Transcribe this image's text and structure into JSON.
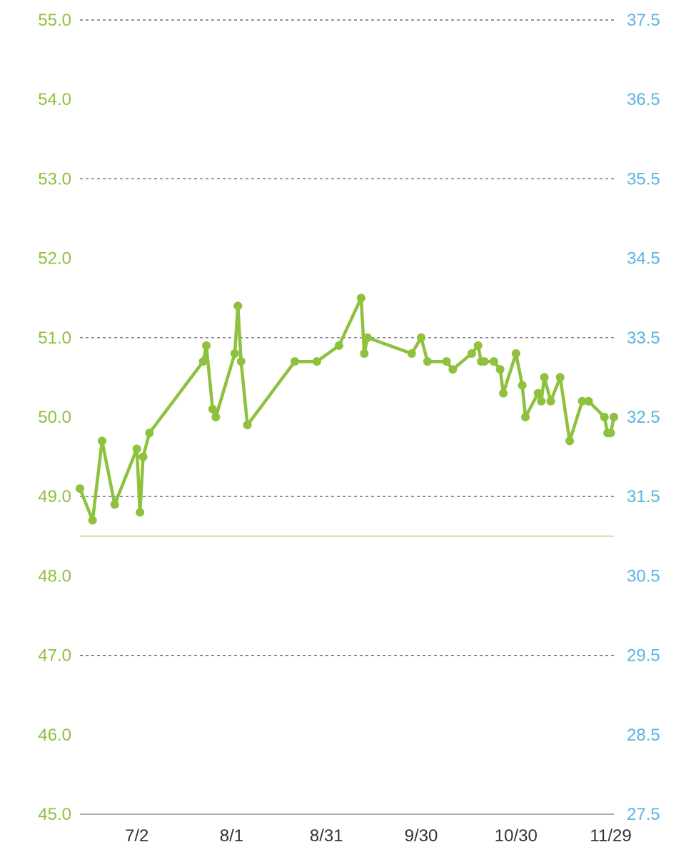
{
  "chart_data": {
    "type": "line",
    "x_axis_kind": "date",
    "x_tick_labels": [
      "7/2",
      "8/1",
      "8/31",
      "9/30",
      "10/30",
      "11/29"
    ],
    "y_left": {
      "ylim": [
        45.0,
        55.0
      ],
      "ticks": [
        "45.0",
        "46.0",
        "47.0",
        "48.0",
        "49.0",
        "50.0",
        "51.0",
        "52.0",
        "53.0",
        "54.0",
        "55.0"
      ]
    },
    "y_right": {
      "ylim": [
        27.5,
        37.5
      ],
      "ticks": [
        "27.5",
        "28.5",
        "29.5",
        "30.5",
        "31.5",
        "32.5",
        "33.5",
        "34.5",
        "35.5",
        "36.5",
        "37.5"
      ]
    },
    "gridlines": [
      47.0,
      49.0,
      51.0,
      53.0,
      55.0
    ],
    "reference_line": 48.5,
    "series": [
      {
        "points": [
          {
            "x": "6/14",
            "y": 49.1
          },
          {
            "x": "6/18",
            "y": 48.7
          },
          {
            "x": "6/21",
            "y": 49.7
          },
          {
            "x": "6/25",
            "y": 48.9
          },
          {
            "x": "6/32",
            "y": 49.6
          },
          {
            "x": "7/3",
            "y": 48.8
          },
          {
            "x": "7/4",
            "y": 49.5
          },
          {
            "x": "7/6",
            "y": 49.8
          },
          {
            "x": "7/23",
            "y": 50.7
          },
          {
            "x": "7/24",
            "y": 50.9
          },
          {
            "x": "7/26",
            "y": 50.1
          },
          {
            "x": "7/27",
            "y": 50.0
          },
          {
            "x": "8/2",
            "y": 50.8
          },
          {
            "x": "8/3",
            "y": 51.4
          },
          {
            "x": "8/4",
            "y": 50.7
          },
          {
            "x": "8/6",
            "y": 49.9
          },
          {
            "x": "8/21",
            "y": 50.7
          },
          {
            "x": "8/28",
            "y": 50.7
          },
          {
            "x": "9/4",
            "y": 50.9
          },
          {
            "x": "9/11",
            "y": 51.5
          },
          {
            "x": "9/12",
            "y": 50.8
          },
          {
            "x": "9/13",
            "y": 51.0
          },
          {
            "x": "9/27",
            "y": 50.8
          },
          {
            "x": "9/30",
            "y": 51.0
          },
          {
            "x": "10/2",
            "y": 50.7
          },
          {
            "x": "10/8",
            "y": 50.7
          },
          {
            "x": "10/10",
            "y": 50.6
          },
          {
            "x": "10/16",
            "y": 50.8
          },
          {
            "x": "10/18",
            "y": 50.9
          },
          {
            "x": "10/19",
            "y": 50.7
          },
          {
            "x": "10/20",
            "y": 50.7
          },
          {
            "x": "10/23",
            "y": 50.7
          },
          {
            "x": "10/25",
            "y": 50.6
          },
          {
            "x": "10/26",
            "y": 50.3
          },
          {
            "x": "10/30",
            "y": 50.8
          },
          {
            "x": "11/1",
            "y": 50.4
          },
          {
            "x": "11/2",
            "y": 50.0
          },
          {
            "x": "11/6",
            "y": 50.3
          },
          {
            "x": "11/7",
            "y": 50.2
          },
          {
            "x": "11/8",
            "y": 50.5
          },
          {
            "x": "11/10",
            "y": 50.2
          },
          {
            "x": "11/13",
            "y": 50.5
          },
          {
            "x": "11/16",
            "y": 49.7
          },
          {
            "x": "11/20",
            "y": 50.2
          },
          {
            "x": "11/22",
            "y": 50.2
          },
          {
            "x": "11/27",
            "y": 50.0
          },
          {
            "x": "11/28",
            "y": 49.8
          },
          {
            "x": "11/29",
            "y": 49.8
          },
          {
            "x": "11/30",
            "y": 50.0
          }
        ]
      }
    ],
    "colors": {
      "series": "#8dc13e",
      "left_axis": "#8dc13e",
      "right_axis": "#5ab4e0",
      "grid": "#555555",
      "baseline": "#999999",
      "reference_line": "#c8e3a0",
      "x_labels": "#333333"
    },
    "grid": true,
    "legend": "none"
  }
}
